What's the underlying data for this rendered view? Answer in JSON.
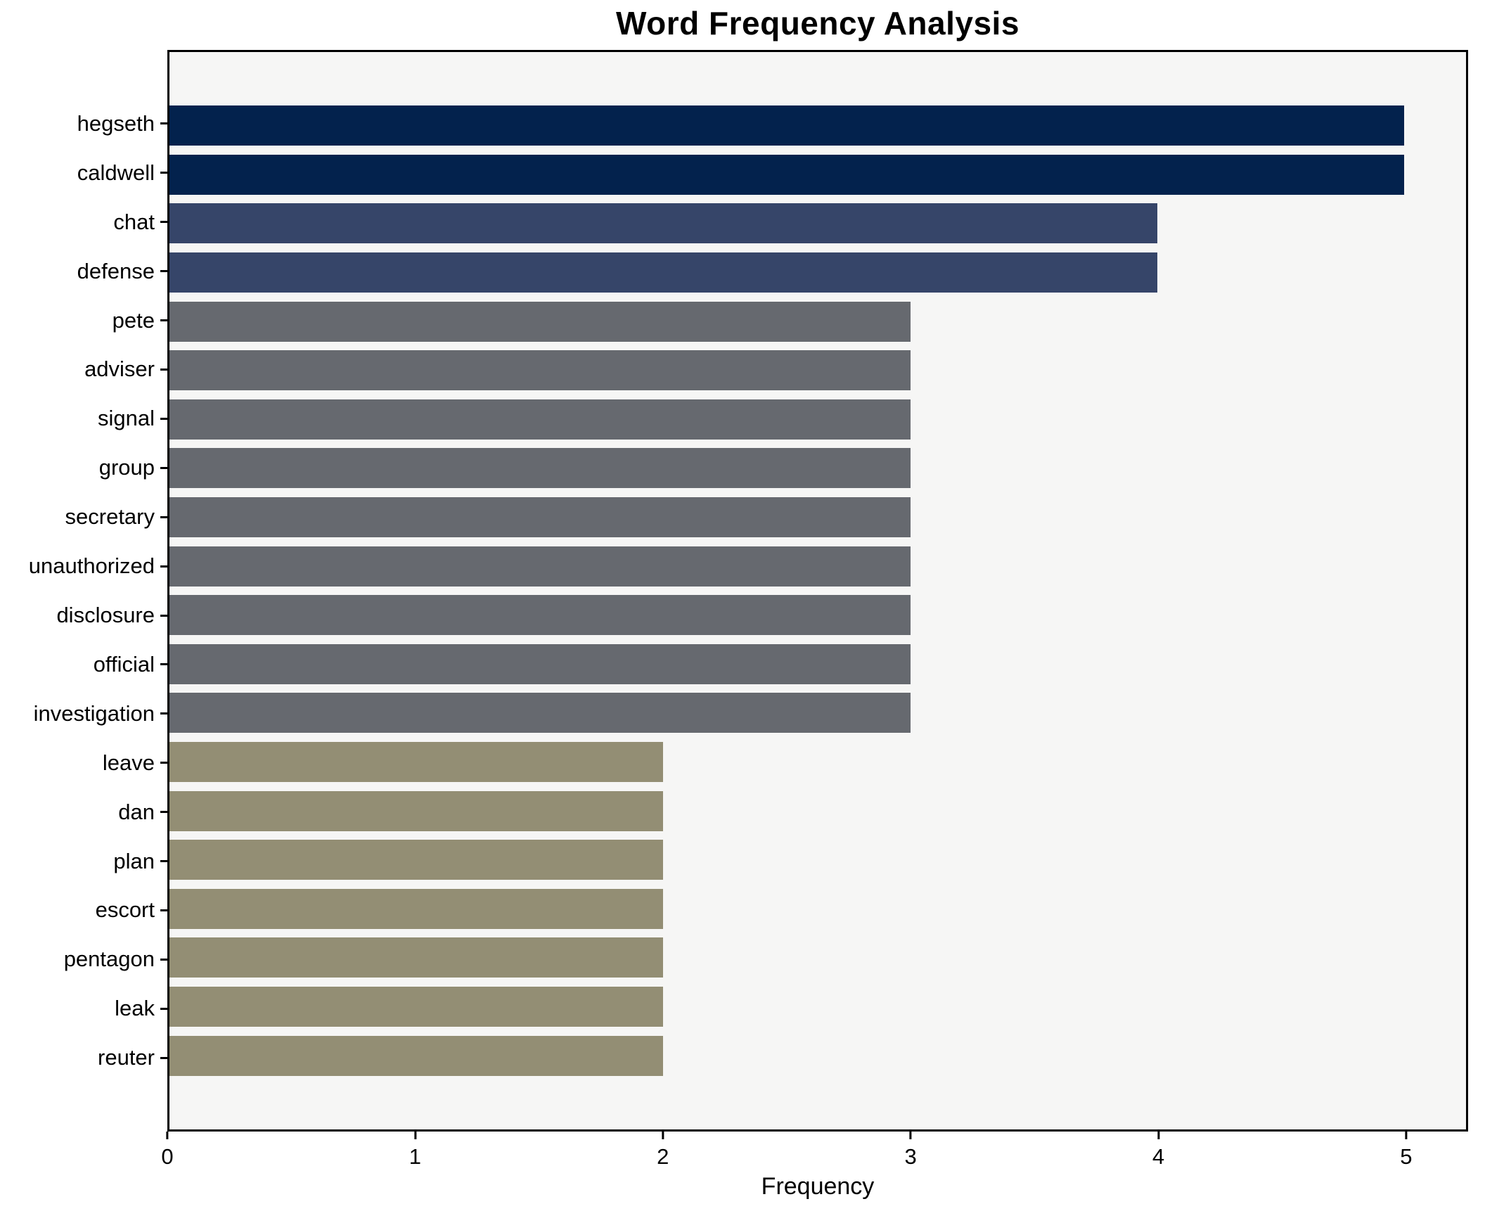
{
  "chart_data": {
    "type": "bar",
    "orientation": "horizontal",
    "title": "Word Frequency Analysis",
    "xlabel": "Frequency",
    "ylabel": "",
    "categories": [
      "hegseth",
      "caldwell",
      "chat",
      "defense",
      "pete",
      "adviser",
      "signal",
      "group",
      "secretary",
      "unauthorized",
      "disclosure",
      "official",
      "investigation",
      "leave",
      "dan",
      "plan",
      "escort",
      "pentagon",
      "leak",
      "reuter"
    ],
    "values": [
      5,
      5,
      4,
      4,
      3,
      3,
      3,
      3,
      3,
      3,
      3,
      3,
      3,
      2,
      2,
      2,
      2,
      2,
      2,
      2
    ],
    "bar_colors": [
      "#03224d",
      "#03224d",
      "#364569",
      "#364569",
      "#66696f",
      "#66696f",
      "#66696f",
      "#66696f",
      "#66696f",
      "#66696f",
      "#66696f",
      "#66696f",
      "#66696f",
      "#938e74",
      "#938e74",
      "#938e74",
      "#938e74",
      "#938e74",
      "#938e74",
      "#938e74"
    ],
    "color_by_value": {
      "5": "#03224d",
      "4": "#364569",
      "3": "#66696f",
      "2": "#938e74"
    },
    "xlim": [
      0,
      5.25
    ],
    "xticks": [
      0,
      1,
      2,
      3,
      4,
      5
    ],
    "grid": false,
    "legend": null,
    "plot_background": "#f6f6f5",
    "figure_background": "#ffffff",
    "spine_color": "#000000"
  }
}
